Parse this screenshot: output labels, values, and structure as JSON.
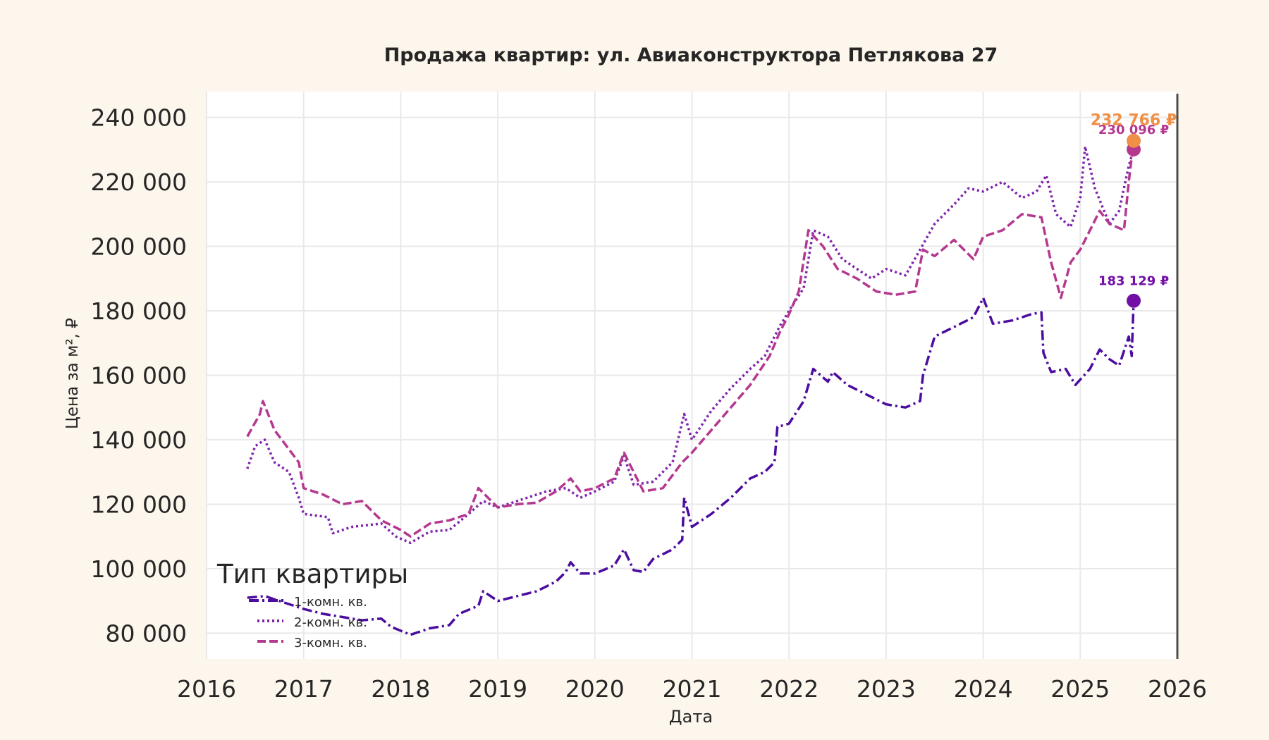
{
  "chart_data": {
    "type": "line",
    "title": "Продажа квартир: ул. Авиаконструктора Петлякова 27",
    "xlabel": "Дата",
    "ylabel": "Цена за м², ₽",
    "xlim": [
      2016,
      2026
    ],
    "ylim": [
      72000,
      248000
    ],
    "x_ticks": [
      "2016",
      "2017",
      "2018",
      "2019",
      "2020",
      "2021",
      "2022",
      "2023",
      "2024",
      "2025",
      "2026"
    ],
    "y_ticks": [
      80000,
      100000,
      120000,
      140000,
      160000,
      180000,
      200000,
      220000,
      240000
    ],
    "y_tick_labels": [
      "80 000",
      "100 000",
      "120 000",
      "140 000",
      "160 000",
      "180 000",
      "200 000",
      "220 000",
      "240 000"
    ],
    "grid": true,
    "legend": {
      "title": "Тип квартиры",
      "placement": "lower-left"
    },
    "series": [
      {
        "name": "1-комн. кв.",
        "color": "#4b0c9f",
        "dash": "dashdot",
        "points": [
          [
            2016.42,
            91000
          ],
          [
            2016.6,
            91500
          ],
          [
            2016.8,
            89500
          ],
          [
            2017.0,
            87500
          ],
          [
            2017.2,
            86000
          ],
          [
            2017.4,
            85000
          ],
          [
            2017.6,
            84000
          ],
          [
            2017.8,
            84500
          ],
          [
            2017.9,
            82000
          ],
          [
            2018.1,
            79500
          ],
          [
            2018.3,
            81500
          ],
          [
            2018.5,
            82500
          ],
          [
            2018.6,
            86000
          ],
          [
            2018.8,
            88500
          ],
          [
            2018.85,
            93000
          ],
          [
            2019.0,
            90000
          ],
          [
            2019.2,
            91500
          ],
          [
            2019.4,
            93000
          ],
          [
            2019.6,
            96000
          ],
          [
            2019.7,
            99000
          ],
          [
            2019.75,
            102000
          ],
          [
            2019.85,
            98500
          ],
          [
            2020.0,
            98500
          ],
          [
            2020.2,
            101000
          ],
          [
            2020.3,
            106000
          ],
          [
            2020.4,
            99500
          ],
          [
            2020.5,
            99000
          ],
          [
            2020.6,
            103000
          ],
          [
            2020.8,
            106000
          ],
          [
            2020.9,
            109000
          ],
          [
            2020.92,
            122000
          ],
          [
            2021.0,
            113000
          ],
          [
            2021.2,
            117000
          ],
          [
            2021.4,
            122000
          ],
          [
            2021.6,
            128000
          ],
          [
            2021.75,
            130000
          ],
          [
            2021.85,
            133000
          ],
          [
            2021.88,
            144000
          ],
          [
            2022.0,
            145000
          ],
          [
            2022.15,
            152000
          ],
          [
            2022.25,
            162000
          ],
          [
            2022.4,
            158000
          ],
          [
            2022.45,
            161000
          ],
          [
            2022.6,
            157000
          ],
          [
            2022.8,
            154000
          ],
          [
            2023.0,
            151000
          ],
          [
            2023.2,
            150000
          ],
          [
            2023.35,
            152000
          ],
          [
            2023.38,
            160000
          ],
          [
            2023.5,
            172000
          ],
          [
            2023.7,
            175000
          ],
          [
            2023.9,
            178000
          ],
          [
            2024.0,
            184000
          ],
          [
            2024.1,
            176000
          ],
          [
            2024.3,
            177000
          ],
          [
            2024.5,
            179000
          ],
          [
            2024.6,
            179500
          ],
          [
            2024.62,
            167000
          ],
          [
            2024.7,
            161000
          ],
          [
            2024.85,
            162000
          ],
          [
            2024.95,
            157000
          ],
          [
            2025.1,
            162000
          ],
          [
            2025.2,
            168000
          ],
          [
            2025.3,
            165000
          ],
          [
            2025.4,
            163000
          ],
          [
            2025.5,
            172000
          ],
          [
            2025.53,
            166000
          ],
          [
            2025.55,
            183129
          ]
        ]
      },
      {
        "name": "2-комн. кв.",
        "color": "#7e22ab",
        "dash": "dotted",
        "points": [
          [
            2016.42,
            131000
          ],
          [
            2016.5,
            138000
          ],
          [
            2016.6,
            140000
          ],
          [
            2016.7,
            133000
          ],
          [
            2016.85,
            130000
          ],
          [
            2016.95,
            122000
          ],
          [
            2017.0,
            117000
          ],
          [
            2017.25,
            116000
          ],
          [
            2017.3,
            111000
          ],
          [
            2017.5,
            113000
          ],
          [
            2017.8,
            114000
          ],
          [
            2017.95,
            110000
          ],
          [
            2018.1,
            108000
          ],
          [
            2018.3,
            111500
          ],
          [
            2018.5,
            112000
          ],
          [
            2018.7,
            117000
          ],
          [
            2018.85,
            121000
          ],
          [
            2019.0,
            119000
          ],
          [
            2019.2,
            121000
          ],
          [
            2019.5,
            124000
          ],
          [
            2019.7,
            125000
          ],
          [
            2019.85,
            122000
          ],
          [
            2020.0,
            124000
          ],
          [
            2020.2,
            127000
          ],
          [
            2020.3,
            135000
          ],
          [
            2020.4,
            126000
          ],
          [
            2020.6,
            127000
          ],
          [
            2020.8,
            133000
          ],
          [
            2020.92,
            148000
          ],
          [
            2021.0,
            140000
          ],
          [
            2021.2,
            149000
          ],
          [
            2021.4,
            156000
          ],
          [
            2021.6,
            162000
          ],
          [
            2021.75,
            166000
          ],
          [
            2021.9,
            175000
          ],
          [
            2022.0,
            180000
          ],
          [
            2022.15,
            187000
          ],
          [
            2022.25,
            205000
          ],
          [
            2022.4,
            203000
          ],
          [
            2022.55,
            196000
          ],
          [
            2022.7,
            193000
          ],
          [
            2022.85,
            190000
          ],
          [
            2023.0,
            193000
          ],
          [
            2023.2,
            191000
          ],
          [
            2023.35,
            199000
          ],
          [
            2023.5,
            207000
          ],
          [
            2023.7,
            213000
          ],
          [
            2023.85,
            218000
          ],
          [
            2024.0,
            217000
          ],
          [
            2024.2,
            220000
          ],
          [
            2024.4,
            215000
          ],
          [
            2024.55,
            217000
          ],
          [
            2024.65,
            222000
          ],
          [
            2024.75,
            210000
          ],
          [
            2024.9,
            206000
          ],
          [
            2025.0,
            215000
          ],
          [
            2025.05,
            231000
          ],
          [
            2025.15,
            218000
          ],
          [
            2025.3,
            207000
          ],
          [
            2025.4,
            211000
          ],
          [
            2025.5,
            225000
          ],
          [
            2025.55,
            230096
          ]
        ]
      },
      {
        "name": "3-комн. кв.",
        "color": "#b5388f",
        "dash": "dashed",
        "points": [
          [
            2016.42,
            141000
          ],
          [
            2016.55,
            148000
          ],
          [
            2016.58,
            152000
          ],
          [
            2016.7,
            143000
          ],
          [
            2016.8,
            139000
          ],
          [
            2016.95,
            133000
          ],
          [
            2017.0,
            125000
          ],
          [
            2017.2,
            123000
          ],
          [
            2017.4,
            120000
          ],
          [
            2017.6,
            121000
          ],
          [
            2017.8,
            115000
          ],
          [
            2018.0,
            112000
          ],
          [
            2018.1,
            110000
          ],
          [
            2018.3,
            114000
          ],
          [
            2018.5,
            115000
          ],
          [
            2018.7,
            117000
          ],
          [
            2018.8,
            125000
          ],
          [
            2019.0,
            119000
          ],
          [
            2019.2,
            120000
          ],
          [
            2019.4,
            120500
          ],
          [
            2019.6,
            124000
          ],
          [
            2019.75,
            128000
          ],
          [
            2019.85,
            124000
          ],
          [
            2020.0,
            125000
          ],
          [
            2020.2,
            128000
          ],
          [
            2020.3,
            136000
          ],
          [
            2020.5,
            124000
          ],
          [
            2020.7,
            125000
          ],
          [
            2020.9,
            133000
          ],
          [
            2021.0,
            136000
          ],
          [
            2021.2,
            143000
          ],
          [
            2021.4,
            150000
          ],
          [
            2021.6,
            157000
          ],
          [
            2021.8,
            166000
          ],
          [
            2021.9,
            173000
          ],
          [
            2022.0,
            179000
          ],
          [
            2022.1,
            186000
          ],
          [
            2022.2,
            205000
          ],
          [
            2022.35,
            200000
          ],
          [
            2022.5,
            193000
          ],
          [
            2022.7,
            190000
          ],
          [
            2022.9,
            186000
          ],
          [
            2023.1,
            185000
          ],
          [
            2023.3,
            186000
          ],
          [
            2023.38,
            199000
          ],
          [
            2023.5,
            197000
          ],
          [
            2023.7,
            202000
          ],
          [
            2023.9,
            196000
          ],
          [
            2024.0,
            203000
          ],
          [
            2024.2,
            205000
          ],
          [
            2024.4,
            210000
          ],
          [
            2024.6,
            209000
          ],
          [
            2024.7,
            195000
          ],
          [
            2024.8,
            184000
          ],
          [
            2024.9,
            195000
          ],
          [
            2025.0,
            199000
          ],
          [
            2025.1,
            205000
          ],
          [
            2025.2,
            211000
          ],
          [
            2025.3,
            207000
          ],
          [
            2025.45,
            205000
          ],
          [
            2025.5,
            220000
          ],
          [
            2025.55,
            232766
          ]
        ]
      }
    ],
    "end_markers": [
      {
        "x": 2025.55,
        "y": 183129,
        "label": "183 129 ₽",
        "color": "#7210a6"
      },
      {
        "x": 2025.55,
        "y": 230096,
        "label": "230 096 ₽",
        "color": "#b5388f"
      },
      {
        "x": 2025.55,
        "y": 232766,
        "label": "232 766 ₽",
        "color": "#f08f47"
      }
    ]
  }
}
